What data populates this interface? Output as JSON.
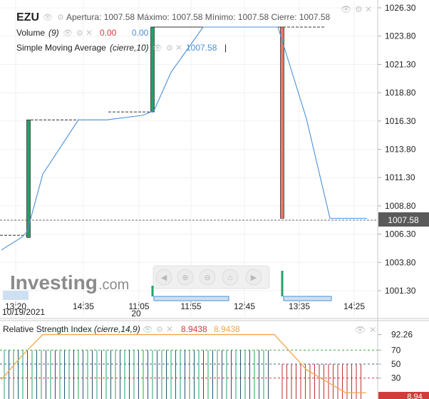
{
  "header": {
    "symbol": "EZU",
    "ohlc": "Apertura: 1007.58 Máximo: 1007.58 Mínimo: 1007.58 Cierre: 1007.58"
  },
  "volume_legend": {
    "name": "Volume",
    "param": "(9)",
    "value": "0.00",
    "value2": "0.00"
  },
  "sma_legend": {
    "name": "Simple Moving Average",
    "param": "(cierre,10)",
    "value": "1007.58"
  },
  "last_price_badge": "1007.58",
  "watermark": {
    "brand": "Investing",
    "suffix": ".com"
  },
  "date_label": "10/19/2021",
  "rsi_legend": {
    "name": "Relative Strength Index",
    "param": "(cierre,14,9)",
    "value1": "8.9438",
    "value2": "8.9438"
  },
  "rsi_last_badge": "8.94",
  "colors": {
    "up": "#1fa36b",
    "down": "#e8776a",
    "sma": "#4a90d9",
    "rsi_signal": "#f0a64a",
    "rsi_up": "#1fa36b",
    "rsi_down": "#b8332f",
    "level70": "#3fb03f",
    "level30": "#d23b3b"
  },
  "chart_data": [
    {
      "type": "candlestick",
      "x_ticks": [
        "13:20",
        "14:35",
        "11:05",
        "11:55",
        "12:45",
        "13:35",
        "14:25"
      ],
      "x_ticks_sub": [
        "",
        "",
        "20",
        "",
        "",
        "",
        ""
      ],
      "y_ticks": [
        "1026.30",
        "1023.80",
        "1021.30",
        "1018.80",
        "1016.30",
        "1013.80",
        "1011.30",
        "1008.80",
        "1006.30",
        "1003.80",
        "1001.30"
      ],
      "ylim": [
        999.8,
        1027.4
      ],
      "candles": [
        {
          "x": 40,
          "open": 1006.0,
          "close": 1016.4,
          "prev_close": 1006.2
        },
        {
          "x": 214,
          "open": 1017.1,
          "close": 1024.6,
          "prev_close": 1017.1
        },
        {
          "x": 396,
          "open": 1024.6,
          "close": 1007.7,
          "prev_close": 1024.6
        }
      ],
      "sma": [
        [
          2,
          1004.9
        ],
        [
          30,
          1006.0
        ],
        [
          38,
          1006.5
        ],
        [
          60,
          1011.6
        ],
        [
          110,
          1016.4
        ],
        [
          150,
          1016.4
        ],
        [
          200,
          1016.8
        ],
        [
          216,
          1017.2
        ],
        [
          240,
          1020.6
        ],
        [
          285,
          1024.6
        ],
        [
          390,
          1024.6
        ],
        [
          430,
          1016.5
        ],
        [
          463,
          1007.7
        ],
        [
          515,
          1007.7
        ]
      ],
      "last_value": 1007.58,
      "volume_bars": [
        {
          "x": 214
        },
        {
          "x": 396
        }
      ]
    },
    {
      "type": "line",
      "title": "Relative Strength Index",
      "y_ticks": [
        "92.26",
        "70",
        "50",
        "30"
      ],
      "ylim": [
        0,
        100
      ],
      "levels": [
        70,
        50,
        30
      ],
      "rsi": [
        [
          2,
          28
        ],
        [
          30,
          61
        ],
        [
          60,
          92.26
        ],
        [
          385,
          92.26
        ],
        [
          430,
          42
        ],
        [
          485,
          8.94
        ],
        [
          514,
          8.94
        ]
      ],
      "signal_up_range": [
        6,
        380
      ],
      "signal_down_range": [
        396,
        512
      ],
      "last_value": 8.94
    }
  ]
}
